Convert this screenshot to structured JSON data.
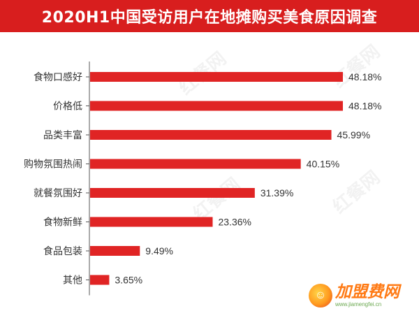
{
  "chart_data": {
    "type": "bar",
    "orientation": "horizontal",
    "title": "2020H1中国受访用户在地摊购买美食原因调查",
    "categories": [
      "食物口感好",
      "价格低",
      "品类丰富",
      "购物氛围热闹",
      "就餐氛围好",
      "食物新鲜",
      "食品包装",
      "其他"
    ],
    "values": [
      48.18,
      48.18,
      45.99,
      40.15,
      31.39,
      23.36,
      9.49,
      3.65
    ],
    "value_labels": [
      "48.18%",
      "48.18%",
      "45.99%",
      "40.15%",
      "31.39%",
      "23.36%",
      "9.49%",
      "3.65%"
    ],
    "xlim": [
      0,
      48.18
    ],
    "grid": false,
    "legend": "none",
    "colors": {
      "bar": "#e02424",
      "title_bg": "#d81e1e",
      "axis": "#555555"
    }
  },
  "watermark": {
    "text": "红餐网"
  },
  "logo": {
    "name": "加盟费网",
    "url": "www.jiamengfei.cn"
  }
}
